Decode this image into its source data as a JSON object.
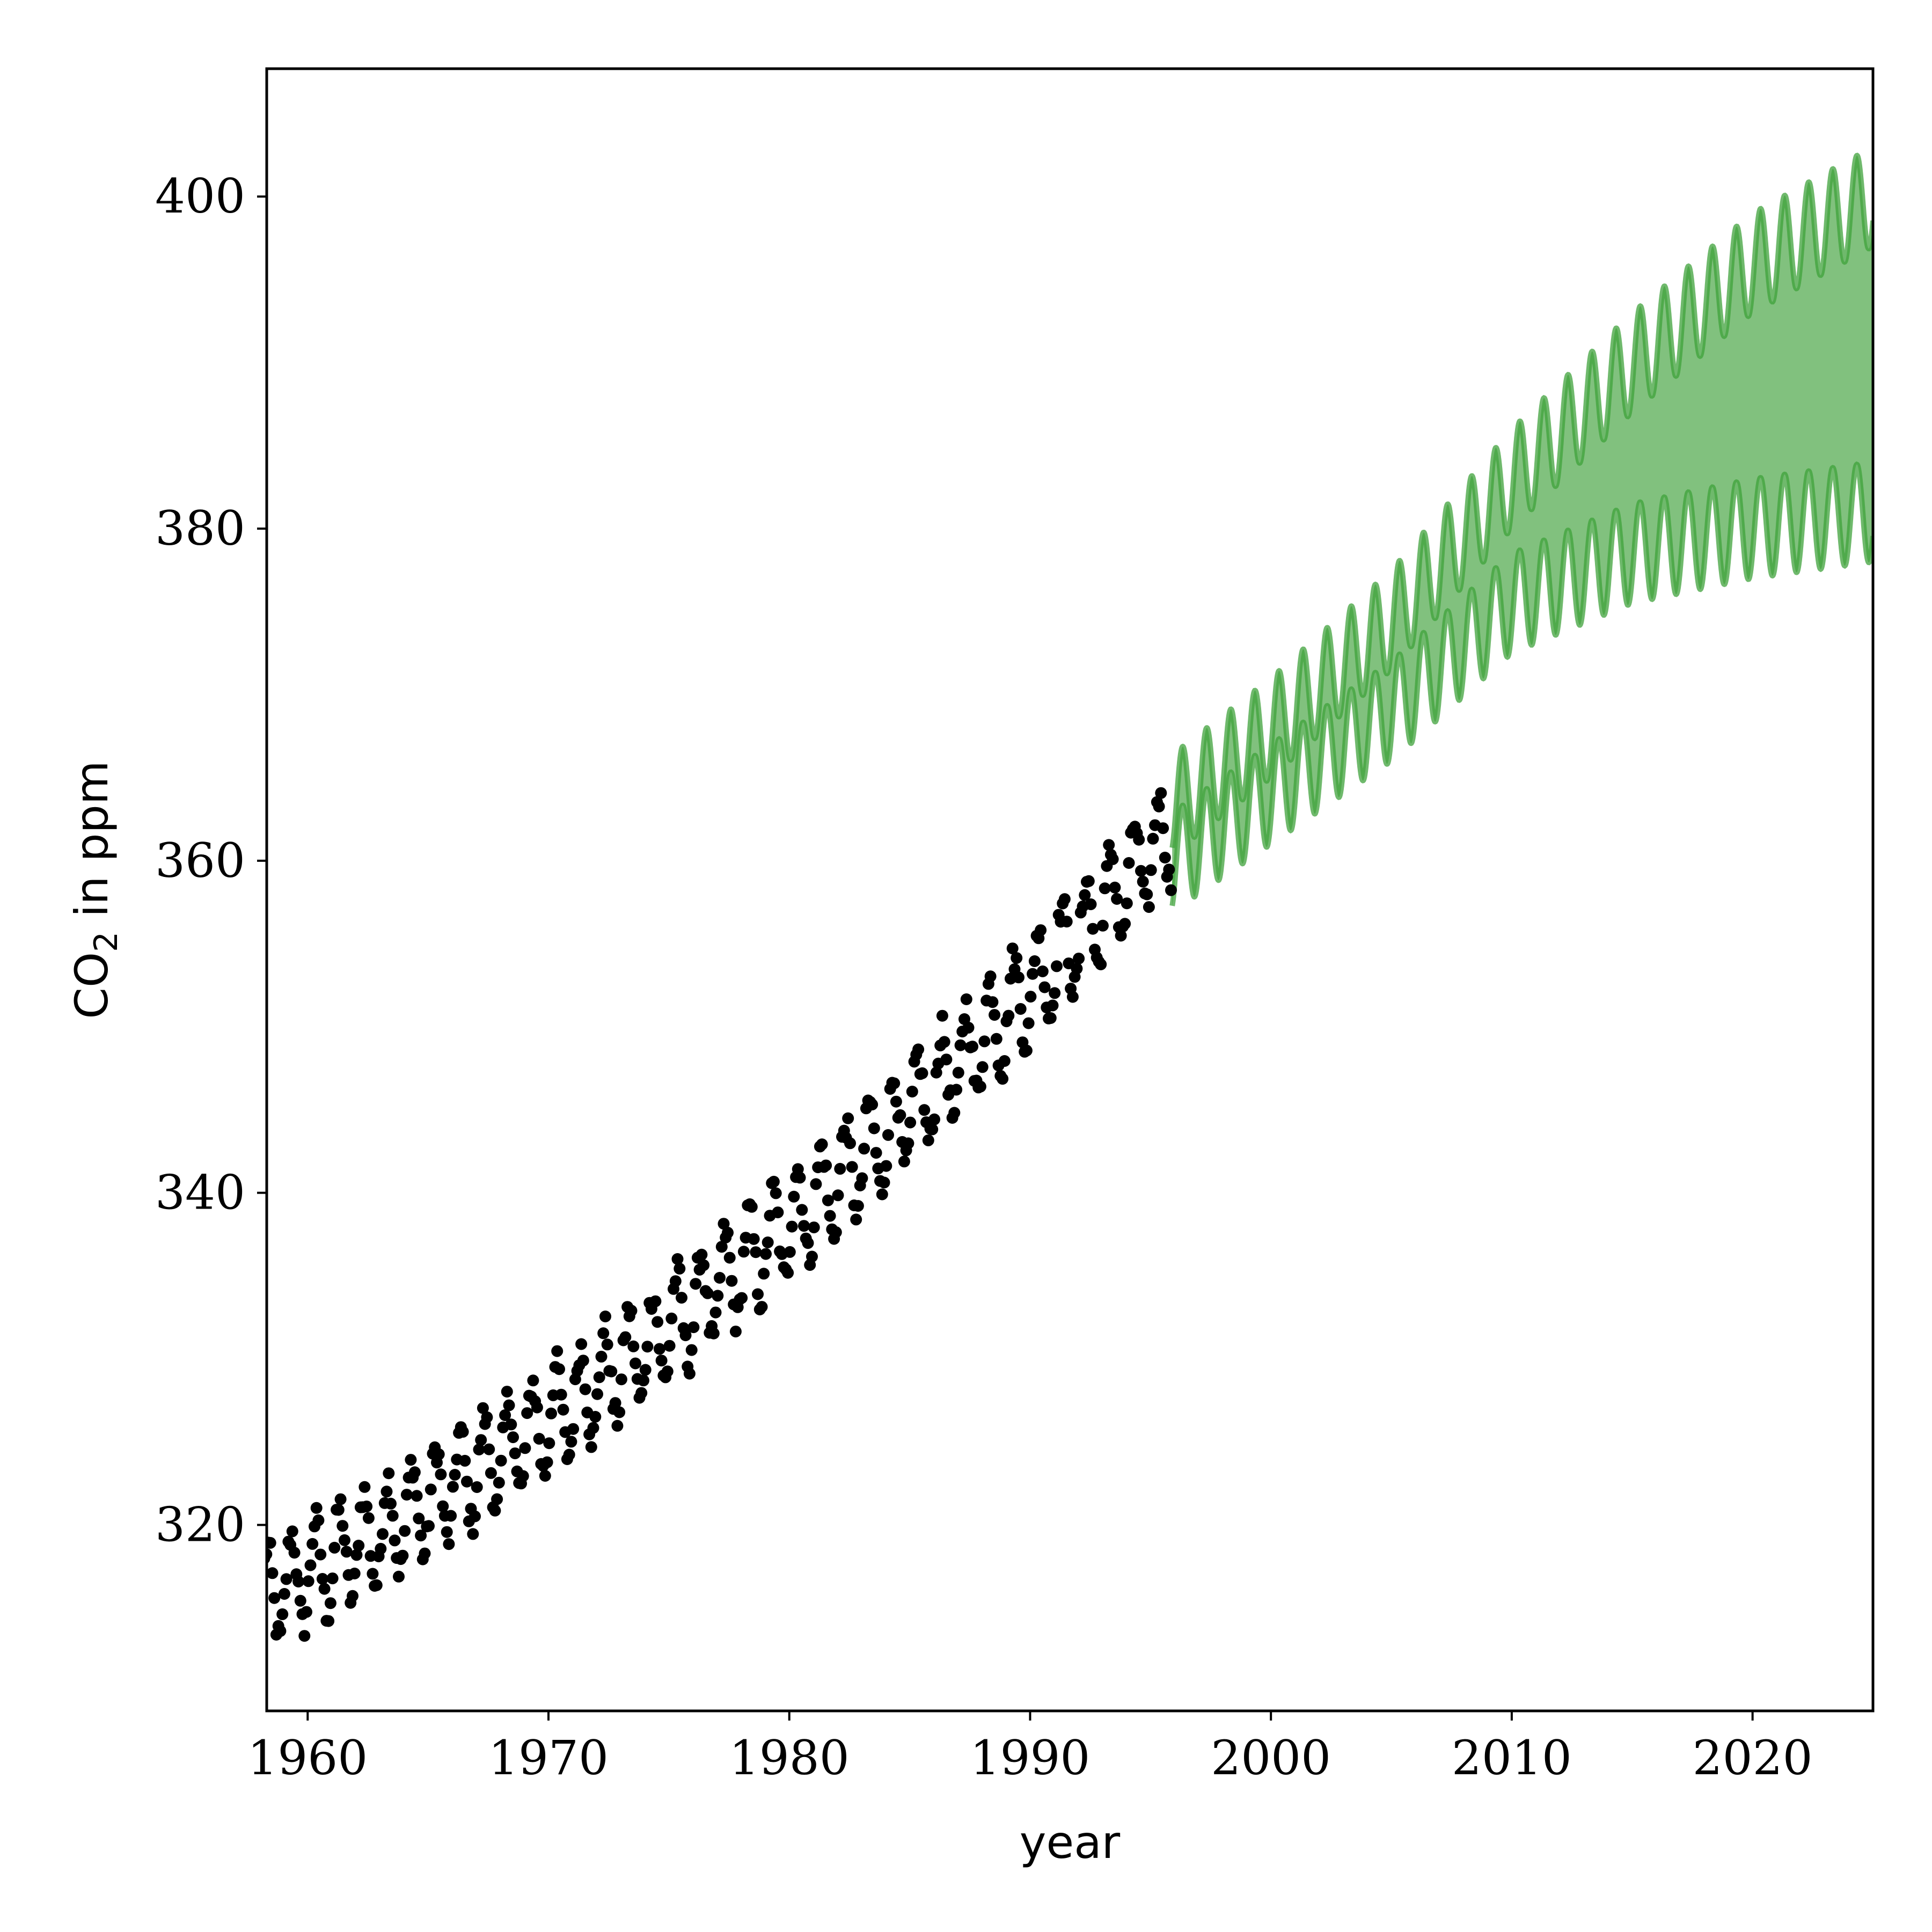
{
  "chart_data": {
    "type": "scatter",
    "xlabel": "year",
    "ylabel_main": "CO",
    "ylabel_sub": "2",
    "ylabel_rest": " in ppm",
    "xlim": [
      1958.3,
      2025
    ],
    "ylim": [
      308.8,
      407.7
    ],
    "xticks": [
      1960,
      1970,
      1980,
      1990,
      2000,
      2010,
      2020
    ],
    "yticks": [
      320,
      340,
      360,
      380,
      400
    ],
    "grid": false,
    "colors": {
      "observed": "#000000",
      "forecast_band": "#81c17e",
      "forecast_line": "#3fa23b"
    },
    "observed": {
      "x_start": 1958.2,
      "x_end": 1995.9,
      "step_years": 0.0833,
      "trend": {
        "at_1958": 315.5,
        "slope_1958": 0.75,
        "curvature": 0.0125
      },
      "seasonal_amplitude": 3.0,
      "seasonal_peak_month": "May"
    },
    "forecast": {
      "x_start": 1995.9,
      "x_end": 2025,
      "mean_at_1996": 360.6,
      "mean_at_2025": 389.5,
      "band_halfwidth_at_1996": 0.8,
      "band_halfwidth_at_2025": 10.0,
      "seasonal_amplitude": 3.0,
      "sample_years": [
        1996,
        2000,
        2005,
        2010,
        2015,
        2020,
        2025
      ],
      "upper_peaks": [
        366.5,
        371.0,
        377.5,
        386.0,
        393.0,
        399.0,
        403.0
      ],
      "lower_peaks": [
        363.0,
        367.0,
        372.0,
        378.5,
        381.5,
        383.0,
        384.0
      ]
    }
  }
}
